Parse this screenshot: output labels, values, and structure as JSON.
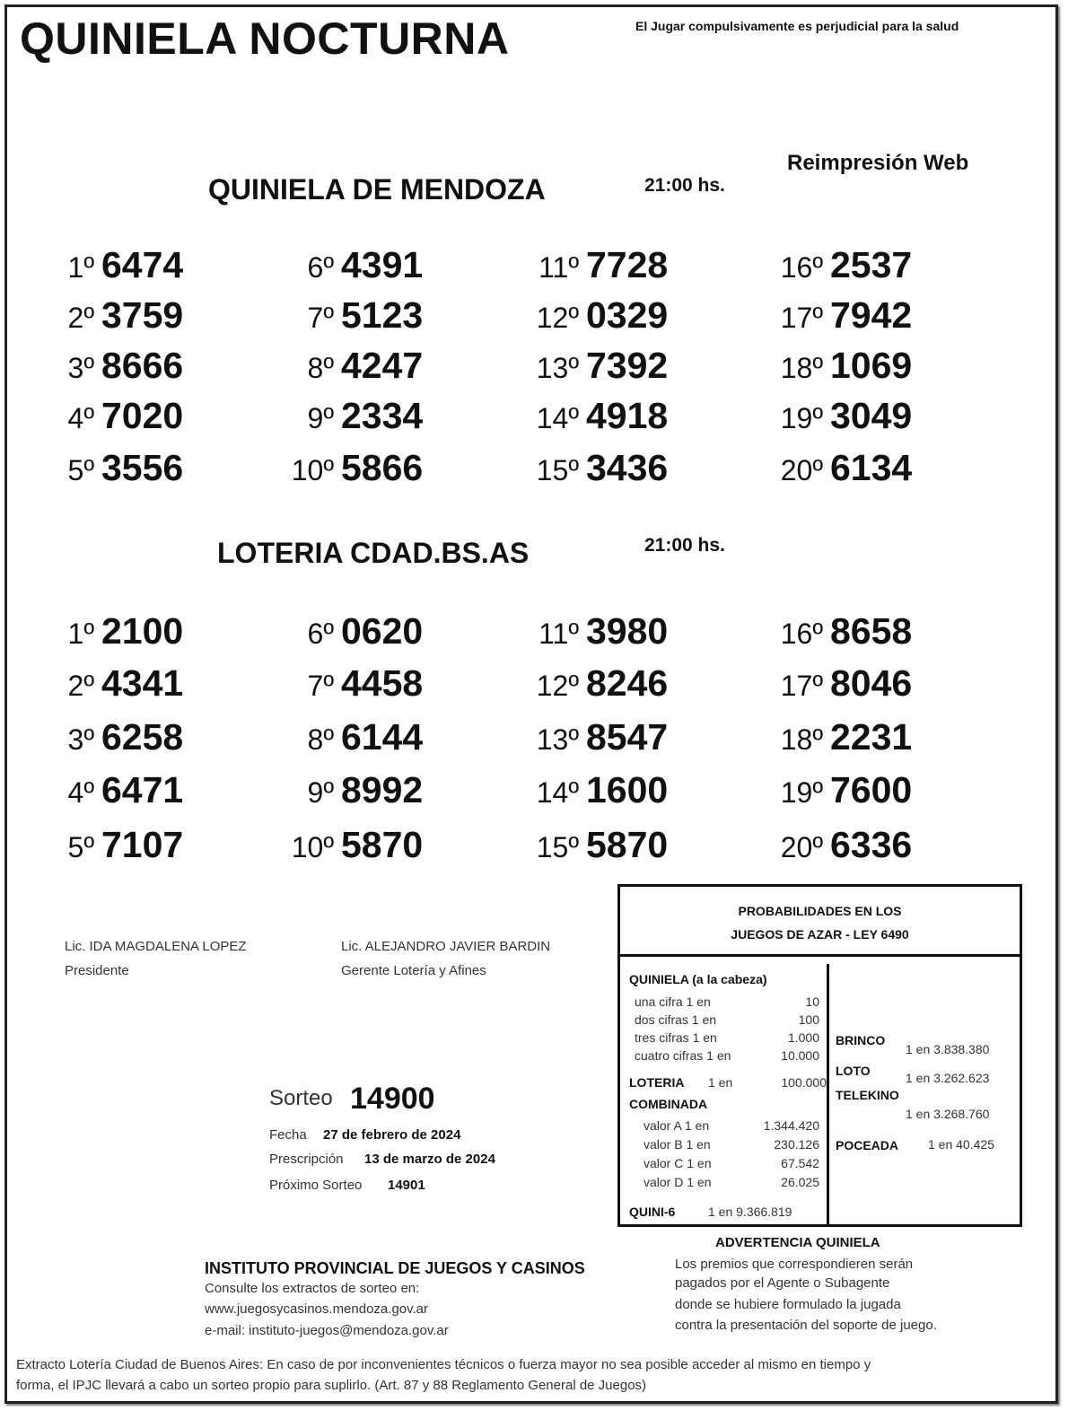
{
  "header": {
    "title": "QUINIELA NOCTURNA",
    "warning": "El Jugar compulsivamente es perjudicial para la salud",
    "reprint": "Reimpresión Web"
  },
  "draws": [
    {
      "name": "QUINIELA  DE MENDOZA",
      "time": "21:00 hs.",
      "results": [
        [
          "1º",
          "6474"
        ],
        [
          "2º",
          "3759"
        ],
        [
          "3º",
          "8666"
        ],
        [
          "4º",
          "7020"
        ],
        [
          "5º",
          "3556"
        ],
        [
          "6º",
          "4391"
        ],
        [
          "7º",
          "5123"
        ],
        [
          "8º",
          "4247"
        ],
        [
          "9º",
          "2334"
        ],
        [
          "10º",
          "5866"
        ],
        [
          "11º",
          "7728"
        ],
        [
          "12º",
          "0329"
        ],
        [
          "13º",
          "7392"
        ],
        [
          "14º",
          "4918"
        ],
        [
          "15º",
          "3436"
        ],
        [
          "16º",
          "2537"
        ],
        [
          "17º",
          "7942"
        ],
        [
          "18º",
          "1069"
        ],
        [
          "19º",
          "3049"
        ],
        [
          "20º",
          "6134"
        ]
      ]
    },
    {
      "name": "LOTERIA CDAD.BS.AS",
      "time": "21:00 hs.",
      "results": [
        [
          "1º",
          "2100"
        ],
        [
          "2º",
          "4341"
        ],
        [
          "3º",
          "6258"
        ],
        [
          "4º",
          "6471"
        ],
        [
          "5º",
          "7107"
        ],
        [
          "6º",
          "0620"
        ],
        [
          "7º",
          "4458"
        ],
        [
          "8º",
          "6144"
        ],
        [
          "9º",
          "8992"
        ],
        [
          "10º",
          "5870"
        ],
        [
          "11º",
          "3980"
        ],
        [
          "12º",
          "8246"
        ],
        [
          "13º",
          "8547"
        ],
        [
          "14º",
          "1600"
        ],
        [
          "15º",
          "5870"
        ],
        [
          "16º",
          "8658"
        ],
        [
          "17º",
          "8046"
        ],
        [
          "18º",
          "2231"
        ],
        [
          "19º",
          "7600"
        ],
        [
          "20º",
          "6336"
        ]
      ]
    }
  ],
  "signatures": [
    {
      "name": "Lic. IDA MAGDALENA LOPEZ",
      "role": "Presidente"
    },
    {
      "name": "Lic. ALEJANDRO JAVIER BARDIN",
      "role": "Gerente Lotería y Afines"
    }
  ],
  "sorteo": {
    "label": "Sorteo",
    "number": "14900",
    "fecha_label": "Fecha",
    "fecha": "27 de febrero de 2024",
    "prescripcion_label": "Prescripción",
    "prescripcion": "13 de marzo de 2024",
    "proximo_label": "Próximo Sorteo",
    "proximo": "14901"
  },
  "probabilities": {
    "title1": "PROBABILIDADES EN LOS",
    "title2": "JUEGOS DE AZAR - LEY 6490",
    "quiniela_label": "QUINIELA (a la cabeza)",
    "quiniela": [
      [
        "una cifra  1 en",
        "10"
      ],
      [
        "dos cifras 1 en",
        "100"
      ],
      [
        "tres cifras 1 en",
        "1.000"
      ],
      [
        "cuatro cifras 1 en",
        "10.000"
      ]
    ],
    "loteria_label": "LOTERIA",
    "loteria_en": "1 en",
    "loteria": "100.000",
    "combinada_label": "COMBINADA",
    "combinada": [
      [
        "valor A 1 en",
        "1.344.420"
      ],
      [
        "valor B 1 en",
        "230.126"
      ],
      [
        "valor C 1 en",
        "67.542"
      ],
      [
        "valor D 1 en",
        "26.025"
      ]
    ],
    "quini6_label": "QUINI-6",
    "quini6": "1 en  9.366.819",
    "brinco_label": "BRINCO",
    "brinco": "1 en 3.838.380",
    "loto_label": "LOTO",
    "loto": "1 en 3.262.623",
    "telekino_label": "TELEKINO",
    "telekino": "1 en 3.268.760",
    "poceada_label": "POCEADA",
    "poceada": "1 en 40.425"
  },
  "institute": {
    "name": "INSTITUTO PROVINCIAL DE JUEGOS Y CASINOS",
    "line1": "Consulte los extractos de sorteo en:",
    "web": "www.juegosycasinos.mendoza.gov.ar",
    "email": "e-mail:  instituto-juegos@mendoza.gov.ar"
  },
  "advertencia": {
    "title": "ADVERTENCIA QUINIELA",
    "lines": [
      "Los premios que correspondieren serán",
      "pagados por el Agente o Subagente",
      "donde se hubiere formulado la jugada",
      "contra la presentación del soporte de juego."
    ]
  },
  "footer": {
    "line1": "Extracto Lotería Ciudad de Buenos Aires: En caso de por inconvenientes técnicos o fuerza mayor no sea posible acceder al mismo en tiempo y",
    "line2": "forma, el IPJC llevará a cabo un sorteo propio para suplirlo. (Art. 87 y 88 Reglamento General de Juegos)"
  }
}
